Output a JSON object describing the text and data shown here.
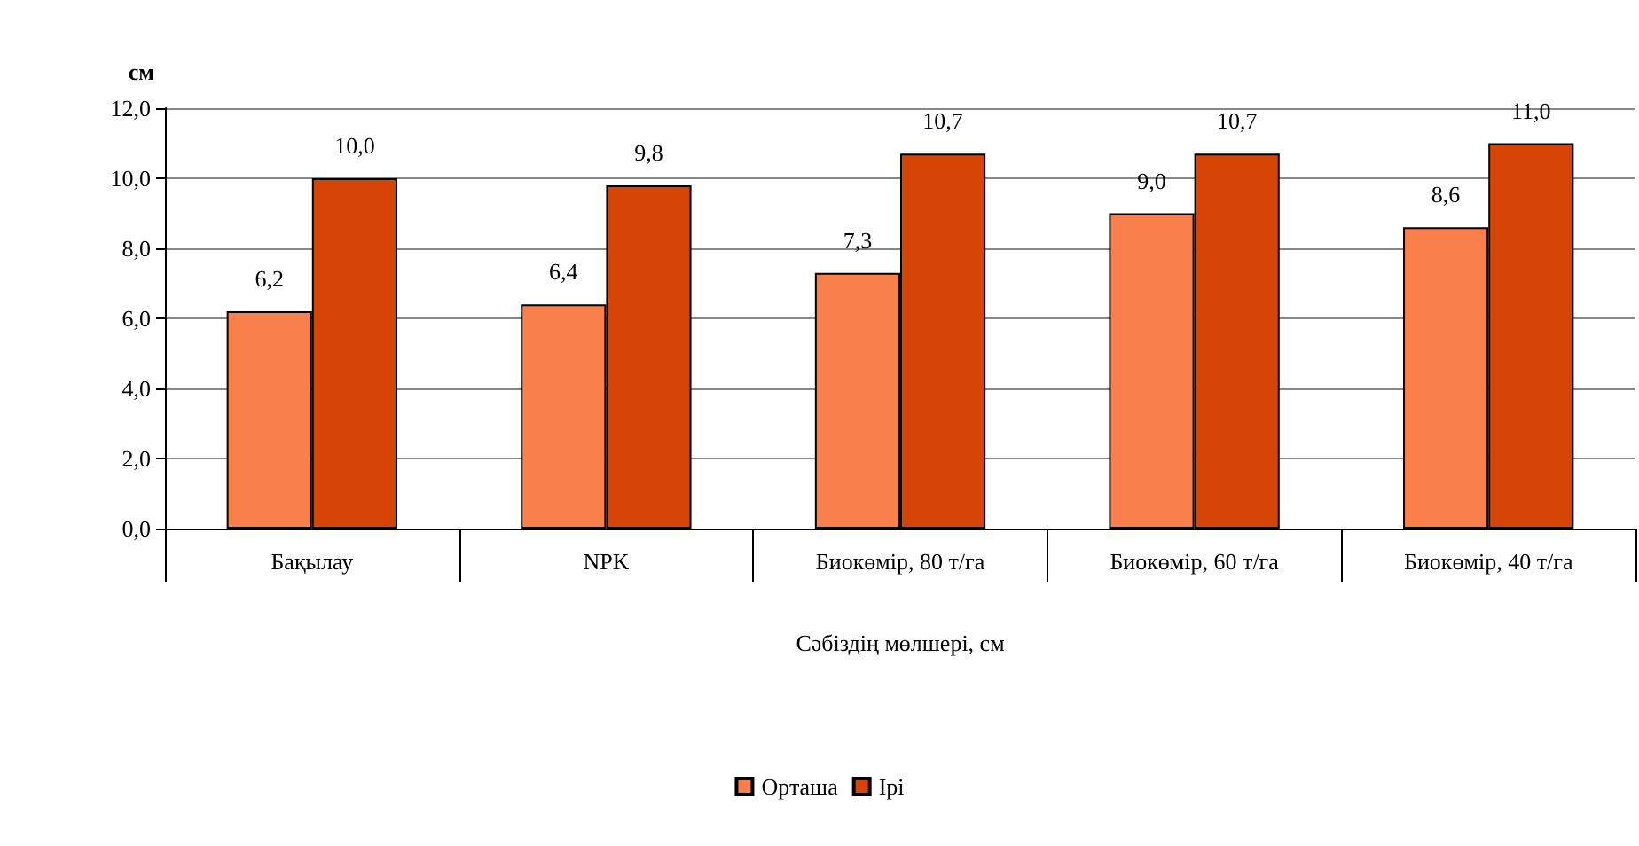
{
  "chart_data": {
    "type": "bar",
    "ylabel": "см",
    "xlabel": "Сәбіздің мөлшері, см",
    "categories": [
      "Бақылау",
      "NPK",
      "Биокөмір, 80 т/га",
      "Биокөмір, 60 т/га",
      "Биокөмір, 40 т/га"
    ],
    "series": [
      {
        "name": "Орташа",
        "color": "#f9804a",
        "values": [
          6.2,
          6.4,
          7.3,
          9.0,
          8.6
        ],
        "value_labels": [
          "6,2",
          "6,4",
          "7,3",
          "9,0",
          "8,6"
        ]
      },
      {
        "name": "Ірі",
        "color": "#d64505",
        "values": [
          10.0,
          9.8,
          10.7,
          10.7,
          11.0
        ],
        "value_labels": [
          "10,0",
          "9,8",
          "10,7",
          "10,7",
          "11,0"
        ]
      }
    ],
    "ylim": [
      0,
      12
    ],
    "yticks": [
      {
        "value": 0,
        "label": "0,0"
      },
      {
        "value": 2,
        "label": "2,0"
      },
      {
        "value": 4,
        "label": "4,0"
      },
      {
        "value": 6,
        "label": "6,0"
      },
      {
        "value": 8,
        "label": "8,0"
      },
      {
        "value": 10,
        "label": "10,0"
      },
      {
        "value": 12,
        "label": "12,0"
      }
    ],
    "grid": "y",
    "legend": "bottom"
  }
}
